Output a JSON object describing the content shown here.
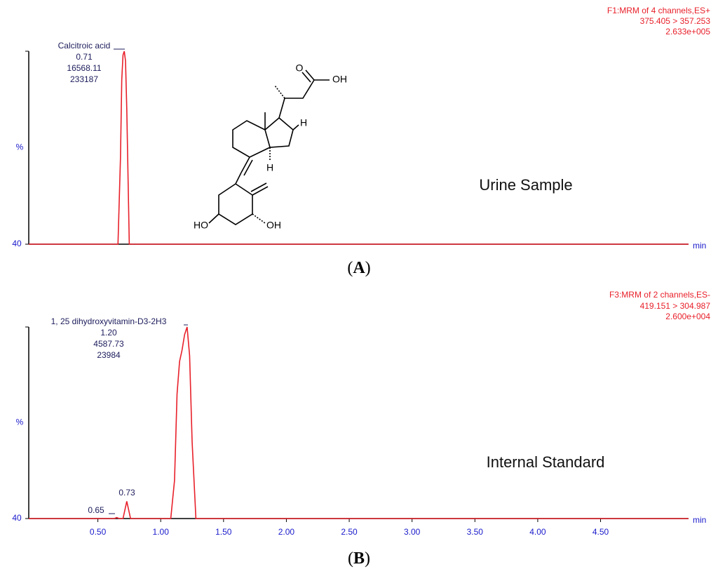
{
  "chart_data": [
    {
      "type": "line",
      "header": [
        "F1:MRM of 4 channels,ES+",
        "375.405 > 357.253",
        "2.633e+005"
      ],
      "y_label": "%",
      "x_label": "min",
      "xlim": [
        -0.05,
        5.2
      ],
      "ylim": [
        0,
        100
      ],
      "yticks": [
        {
          "value": 0,
          "label": "40"
        }
      ],
      "color": "#e8202a",
      "x": [
        -0.05,
        0.66,
        0.68,
        0.69,
        0.7,
        0.71,
        0.72,
        0.73,
        0.75,
        5.2
      ],
      "values": [
        0,
        0,
        45,
        85,
        98,
        100,
        95,
        70,
        0,
        0
      ],
      "peak_labels": [
        {
          "lines": [
            "Calcitroic acid",
            "0.71",
            "16568.11",
            "233187"
          ]
        }
      ],
      "annotation": "Urine Sample",
      "structure_labels": [
        "O",
        "OH",
        "H",
        "H",
        "HO",
        "OH"
      ],
      "panel_label": [
        "(",
        "A",
        ")"
      ]
    },
    {
      "type": "line",
      "header": [
        "F3:MRM of 2 channels,ES-",
        "419.151 > 304.987",
        "2.600e+004"
      ],
      "y_label": "%",
      "x_label": "min",
      "xlim": [
        -0.05,
        5.2
      ],
      "ylim": [
        0,
        100
      ],
      "yticks": [
        {
          "value": 0,
          "label": "40"
        }
      ],
      "xticks": [
        {
          "value": 0.5,
          "label": "0.50"
        },
        {
          "value": 1,
          "label": "1.00"
        },
        {
          "value": 1.5,
          "label": "1.50"
        },
        {
          "value": 2,
          "label": "2.00"
        },
        {
          "value": 2.5,
          "label": "2.50"
        },
        {
          "value": 3,
          "label": "3.00"
        },
        {
          "value": 3.5,
          "label": "3.50"
        },
        {
          "value": 4,
          "label": "4.00"
        },
        {
          "value": 4.5,
          "label": "4.50"
        }
      ],
      "color": "#e8202a",
      "x": [
        -0.05,
        0.63,
        0.65,
        0.67,
        0.7,
        0.72,
        0.73,
        0.74,
        0.76,
        1.08,
        1.11,
        1.13,
        1.15,
        1.17,
        1.19,
        1.21,
        1.23,
        1.25,
        1.28,
        5.2
      ],
      "values": [
        0,
        0,
        0.5,
        0,
        0,
        6,
        9,
        6,
        0,
        0,
        20,
        65,
        82,
        88,
        96,
        100,
        85,
        40,
        0,
        0
      ],
      "peak_labels": [
        {
          "lines": [
            "1, 25 dihydroxyvitamin-D3-2H3",
            "1.20",
            "4587.73",
            "23984"
          ]
        },
        {
          "lines": [
            "0.73"
          ]
        },
        {
          "lines": [
            "0.65"
          ]
        }
      ],
      "annotation": "Internal Standard",
      "panel_label": [
        "(",
        "B",
        ")"
      ]
    }
  ]
}
